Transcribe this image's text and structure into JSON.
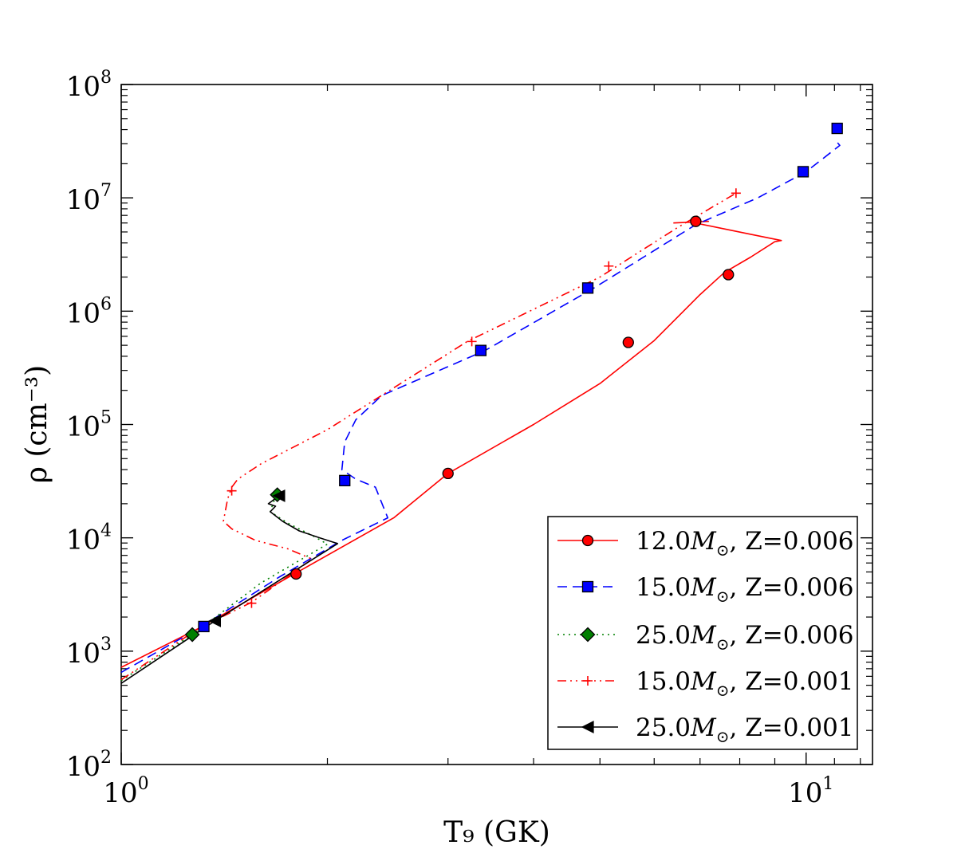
{
  "chart_data": {
    "type": "line",
    "title": "",
    "xlabel": "T₉ (GK)",
    "ylabel": "ρ (cm⁻³)",
    "xscale": "log",
    "yscale": "log",
    "xlim": [
      1.0,
      12.5
    ],
    "ylim": [
      100,
      100000000
    ],
    "x_ticks": [
      {
        "base": "10",
        "exp": "0",
        "value": 1
      },
      {
        "base": "10",
        "exp": "1",
        "value": 10
      }
    ],
    "y_ticks": [
      {
        "base": "10",
        "exp": "2",
        "value": 100
      },
      {
        "base": "10",
        "exp": "3",
        "value": 1000
      },
      {
        "base": "10",
        "exp": "4",
        "value": 10000
      },
      {
        "base": "10",
        "exp": "5",
        "value": 100000
      },
      {
        "base": "10",
        "exp": "6",
        "value": 1000000
      },
      {
        "base": "10",
        "exp": "7",
        "value": 10000000
      },
      {
        "base": "10",
        "exp": "8",
        "value": 100000000
      }
    ],
    "legend_position": "lower-right",
    "series": [
      {
        "name": "12.0M⊙, Z=0.006",
        "mass": "12.0",
        "z": "Z=0.006",
        "color": "#ff0000",
        "marker_fill": "#ff0000",
        "marker": "circle",
        "dash": "",
        "x": [
          1.0,
          1.3,
          1.8,
          2.5,
          3.0,
          4.0,
          5.0,
          6.0,
          7.0,
          7.6,
          8.3,
          9.0,
          9.2,
          8.4,
          7.5,
          6.8,
          7.2,
          6.4
        ],
        "y": [
          720,
          1600,
          4900,
          15000,
          37000,
          100000,
          230000,
          550000,
          1400000,
          2200000,
          3000000,
          4100000,
          4200000,
          4700000,
          5400000,
          6100000,
          6200000,
          6000000
        ],
        "markers": [
          {
            "x": 1.8,
            "y": 4800
          },
          {
            "x": 3.0,
            "y": 37000
          },
          {
            "x": 5.5,
            "y": 530000
          },
          {
            "x": 6.9,
            "y": 6200000
          },
          {
            "x": 7.7,
            "y": 2100000
          }
        ]
      },
      {
        "name": "15.0M⊙, Z=0.006",
        "mass": "15.0",
        "z": "Z=0.006",
        "color": "#0000ff",
        "marker_fill": "#0000ff",
        "marker": "square",
        "dash": "12,7",
        "x": [
          1.0,
          1.3,
          1.7,
          2.1,
          2.45,
          2.35,
          2.2,
          2.1,
          2.12,
          2.2,
          2.4,
          3.4,
          4.9,
          6.9,
          8.5,
          10.0,
          11.2,
          11.0
        ],
        "y": [
          650,
          1600,
          4500,
          9500,
          15000,
          28000,
          33000,
          40000,
          70000,
          110000,
          180000,
          450000,
          1600000,
          5800000,
          10000000,
          17000000,
          29000000,
          33000000
        ],
        "markers": [
          {
            "x": 1.32,
            "y": 1650
          },
          {
            "x": 2.12,
            "y": 32000
          },
          {
            "x": 3.35,
            "y": 450000
          },
          {
            "x": 4.8,
            "y": 1600000
          },
          {
            "x": 9.9,
            "y": 17000000
          },
          {
            "x": 11.1,
            "y": 41000000
          }
        ]
      },
      {
        "name": "25.0M⊙, Z=0.006",
        "mass": "25.0",
        "z": "Z=0.006",
        "color": "#008000",
        "marker_fill": "#008000",
        "marker": "diamond",
        "dash": "2,5",
        "x": [
          1.0,
          1.27,
          1.6,
          2.0,
          1.9,
          1.75,
          1.65,
          1.67,
          1.7
        ],
        "y": [
          550,
          1400,
          4000,
          8800,
          10500,
          13500,
          17000,
          21000,
          24000
        ],
        "markers": [
          {
            "x": 1.27,
            "y": 1400
          },
          {
            "x": 1.69,
            "y": 24000
          }
        ]
      },
      {
        "name": "15.0M⊙, Z=0.001",
        "mass": "15.0",
        "z": "Z=0.001",
        "color": "#ff0000",
        "marker_fill": "none",
        "marker": "plus",
        "dash": "11,5,2,5,2,5",
        "x": [
          1.0,
          1.3,
          1.55,
          1.9,
          1.75,
          1.57,
          1.45,
          1.41,
          1.43,
          1.45,
          1.48,
          1.6,
          2.0,
          3.2,
          5.0,
          6.5,
          7.9
        ],
        "y": [
          560,
          1600,
          2700,
          6500,
          8000,
          9500,
          12000,
          14000,
          22000,
          28000,
          33000,
          45000,
          90000,
          540000,
          2000000,
          5500000,
          11000000
        ],
        "markers": [
          {
            "x": 1.55,
            "y": 2650
          },
          {
            "x": 1.45,
            "y": 26000
          },
          {
            "x": 3.25,
            "y": 540000
          },
          {
            "x": 5.15,
            "y": 2500000
          },
          {
            "x": 7.9,
            "y": 11000000
          }
        ]
      },
      {
        "name": "25.0M⊙, Z=0.001",
        "mass": "25.0",
        "z": "Z=0.001",
        "color": "#000000",
        "marker_fill": "#000000",
        "marker": "triangle-left",
        "dash": "",
        "x": [
          1.0,
          1.37,
          1.7,
          2.07,
          1.95,
          1.82,
          1.72,
          1.65,
          1.68,
          1.64,
          1.7
        ],
        "y": [
          520,
          1850,
          4200,
          8900,
          10000,
          11500,
          14000,
          17000,
          19000,
          20000,
          23500
        ],
        "markers": [
          {
            "x": 1.37,
            "y": 1850
          },
          {
            "x": 1.7,
            "y": 23500
          }
        ]
      }
    ]
  }
}
